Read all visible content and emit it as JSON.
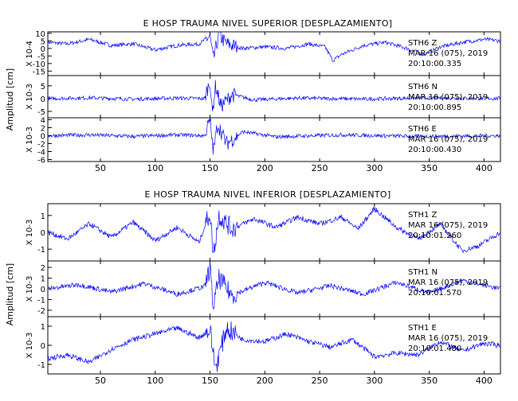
{
  "chart_data": [
    {
      "type": "line",
      "title": "E HOSP TRAUMA NIVEL SUPERIOR [DESPLAZAMIENTO]",
      "ylabel": "Amplitud [cm]",
      "xlim": [
        2,
        415
      ],
      "xticks": [
        50,
        100,
        150,
        200,
        250,
        300,
        350,
        400
      ],
      "series_color": "#0000ff",
      "panels": [
        {
          "scale_label": "X 10-4",
          "ylim": [
            -18,
            11
          ],
          "yticks": [
            10,
            5,
            0,
            -5,
            -10,
            -15
          ],
          "channel": "STH6  Z",
          "date": "MAR 16 (075), 2019",
          "time": "20:10:00.335",
          "series": [
            {
              "x": 2,
              "y": 4
            },
            {
              "x": 20,
              "y": 3
            },
            {
              "x": 40,
              "y": 6
            },
            {
              "x": 60,
              "y": 2
            },
            {
              "x": 80,
              "y": 3
            },
            {
              "x": 100,
              "y": -1
            },
            {
              "x": 120,
              "y": 2
            },
            {
              "x": 140,
              "y": 3
            },
            {
              "x": 150,
              "y": 8
            },
            {
              "x": 153,
              "y": -8
            },
            {
              "x": 158,
              "y": 9
            },
            {
              "x": 165,
              "y": 3
            },
            {
              "x": 180,
              "y": 0
            },
            {
              "x": 200,
              "y": 1
            },
            {
              "x": 220,
              "y": 0
            },
            {
              "x": 240,
              "y": 3
            },
            {
              "x": 255,
              "y": 1
            },
            {
              "x": 262,
              "y": -8
            },
            {
              "x": 270,
              "y": -4
            },
            {
              "x": 290,
              "y": 2
            },
            {
              "x": 310,
              "y": 4
            },
            {
              "x": 330,
              "y": 0
            },
            {
              "x": 345,
              "y": -4
            },
            {
              "x": 360,
              "y": 1
            },
            {
              "x": 380,
              "y": 4
            },
            {
              "x": 400,
              "y": 6
            },
            {
              "x": 415,
              "y": 5
            }
          ]
        },
        {
          "scale_label": "X 10-3",
          "ylim": [
            -7.5,
            9
          ],
          "yticks": [
            5,
            0,
            -5
          ],
          "channel": "STH6  N",
          "date": "MAR 16 (075), 2019",
          "time": "20:10:00.895",
          "series": [
            {
              "x": 2,
              "y": 0
            },
            {
              "x": 40,
              "y": 0.3
            },
            {
              "x": 80,
              "y": -0.2
            },
            {
              "x": 120,
              "y": 0.2
            },
            {
              "x": 145,
              "y": 0
            },
            {
              "x": 150,
              "y": 7
            },
            {
              "x": 152,
              "y": -6
            },
            {
              "x": 155,
              "y": 5
            },
            {
              "x": 160,
              "y": -3
            },
            {
              "x": 170,
              "y": 1.5
            },
            {
              "x": 190,
              "y": -0.5
            },
            {
              "x": 230,
              "y": 0.2
            },
            {
              "x": 290,
              "y": -0.2
            },
            {
              "x": 350,
              "y": 0.3
            },
            {
              "x": 415,
              "y": 0
            }
          ]
        },
        {
          "scale_label": "X 10-3",
          "ylim": [
            -6.5,
            4.5
          ],
          "yticks": [
            4,
            2,
            0,
            -2,
            -4,
            -6
          ],
          "channel": "STH6  E",
          "date": "MAR 16 (075), 2019",
          "time": "20:10:00.430",
          "series": [
            {
              "x": 2,
              "y": 0
            },
            {
              "x": 40,
              "y": 0.2
            },
            {
              "x": 80,
              "y": -0.2
            },
            {
              "x": 120,
              "y": 0.2
            },
            {
              "x": 145,
              "y": 0
            },
            {
              "x": 150,
              "y": 4
            },
            {
              "x": 153,
              "y": -4
            },
            {
              "x": 157,
              "y": 3
            },
            {
              "x": 165,
              "y": -2
            },
            {
              "x": 180,
              "y": 1
            },
            {
              "x": 210,
              "y": -0.3
            },
            {
              "x": 270,
              "y": 0.2
            },
            {
              "x": 340,
              "y": -0.2
            },
            {
              "x": 415,
              "y": 0
            }
          ]
        }
      ]
    },
    {
      "type": "line",
      "title": "E HOSP TRAUMA NIVEL INFERIOR [DESPLAZAMIENTO]",
      "ylabel": "Amplitud [cm]",
      "xlim": [
        2,
        415
      ],
      "xticks": [
        50,
        100,
        150,
        200,
        250,
        300,
        350,
        400
      ],
      "series_color": "#0000ff",
      "panels": [
        {
          "scale_label": "X 10-3",
          "ylim": [
            -1.7,
            1.7
          ],
          "yticks": [
            1,
            0,
            -1
          ],
          "channel": "STH1  Z",
          "date": "MAR 16 (075), 2019",
          "time": "20:10:01.260",
          "series": [
            {
              "x": 2,
              "y": 0
            },
            {
              "x": 20,
              "y": -0.4
            },
            {
              "x": 40,
              "y": 0.5
            },
            {
              "x": 60,
              "y": -0.3
            },
            {
              "x": 80,
              "y": 0.6
            },
            {
              "x": 100,
              "y": -0.5
            },
            {
              "x": 120,
              "y": 0.3
            },
            {
              "x": 140,
              "y": -0.6
            },
            {
              "x": 150,
              "y": 1.2
            },
            {
              "x": 153,
              "y": -1.4
            },
            {
              "x": 158,
              "y": 1.0
            },
            {
              "x": 170,
              "y": 0.2
            },
            {
              "x": 190,
              "y": 0.8
            },
            {
              "x": 210,
              "y": 0.3
            },
            {
              "x": 230,
              "y": 0.9
            },
            {
              "x": 250,
              "y": 0.5
            },
            {
              "x": 270,
              "y": 0.9
            },
            {
              "x": 285,
              "y": 0.2
            },
            {
              "x": 300,
              "y": 1.4
            },
            {
              "x": 320,
              "y": 0.3
            },
            {
              "x": 340,
              "y": -0.4
            },
            {
              "x": 360,
              "y": 0.5
            },
            {
              "x": 380,
              "y": -1.1
            },
            {
              "x": 395,
              "y": -0.8
            },
            {
              "x": 415,
              "y": 0
            }
          ]
        },
        {
          "scale_label": "X 10-3",
          "ylim": [
            -2.6,
            2.6
          ],
          "yticks": [
            2,
            1,
            0,
            -1,
            -2
          ],
          "channel": "STH1  N",
          "date": "MAR 16 (075), 2019",
          "time": "20:10:01.570",
          "series": [
            {
              "x": 2,
              "y": 0
            },
            {
              "x": 30,
              "y": 0.4
            },
            {
              "x": 60,
              "y": -0.3
            },
            {
              "x": 90,
              "y": 0.5
            },
            {
              "x": 120,
              "y": -0.5
            },
            {
              "x": 145,
              "y": 0.2
            },
            {
              "x": 150,
              "y": 2.0
            },
            {
              "x": 153,
              "y": -1.8
            },
            {
              "x": 158,
              "y": 1.0
            },
            {
              "x": 170,
              "y": -0.6
            },
            {
              "x": 200,
              "y": 0.6
            },
            {
              "x": 230,
              "y": -0.4
            },
            {
              "x": 260,
              "y": 0.3
            },
            {
              "x": 290,
              "y": -0.5
            },
            {
              "x": 320,
              "y": 0.6
            },
            {
              "x": 350,
              "y": -0.4
            },
            {
              "x": 380,
              "y": 0.8
            },
            {
              "x": 415,
              "y": 0
            }
          ]
        },
        {
          "scale_label": "X 10-3",
          "ylim": [
            -1.5,
            1.5
          ],
          "yticks": [
            1,
            0,
            -1
          ],
          "channel": "STH1  E",
          "date": "MAR 16 (075), 2019",
          "time": "20:10:01.480",
          "series": [
            {
              "x": 2,
              "y": -0.7
            },
            {
              "x": 20,
              "y": -0.5
            },
            {
              "x": 40,
              "y": -0.9
            },
            {
              "x": 60,
              "y": -0.2
            },
            {
              "x": 80,
              "y": 0.3
            },
            {
              "x": 100,
              "y": 0.6
            },
            {
              "x": 120,
              "y": 0.9
            },
            {
              "x": 140,
              "y": 0.4
            },
            {
              "x": 150,
              "y": 0.8
            },
            {
              "x": 155,
              "y": -1.2
            },
            {
              "x": 165,
              "y": 0.9
            },
            {
              "x": 180,
              "y": 0.3
            },
            {
              "x": 200,
              "y": 0.2
            },
            {
              "x": 220,
              "y": 0.6
            },
            {
              "x": 240,
              "y": 0.2
            },
            {
              "x": 260,
              "y": -0.1
            },
            {
              "x": 280,
              "y": 0.3
            },
            {
              "x": 300,
              "y": -0.6
            },
            {
              "x": 320,
              "y": -0.4
            },
            {
              "x": 340,
              "y": -0.5
            },
            {
              "x": 360,
              "y": 0.2
            },
            {
              "x": 380,
              "y": -0.3
            },
            {
              "x": 400,
              "y": 0.1
            },
            {
              "x": 415,
              "y": 0
            }
          ]
        }
      ]
    }
  ]
}
